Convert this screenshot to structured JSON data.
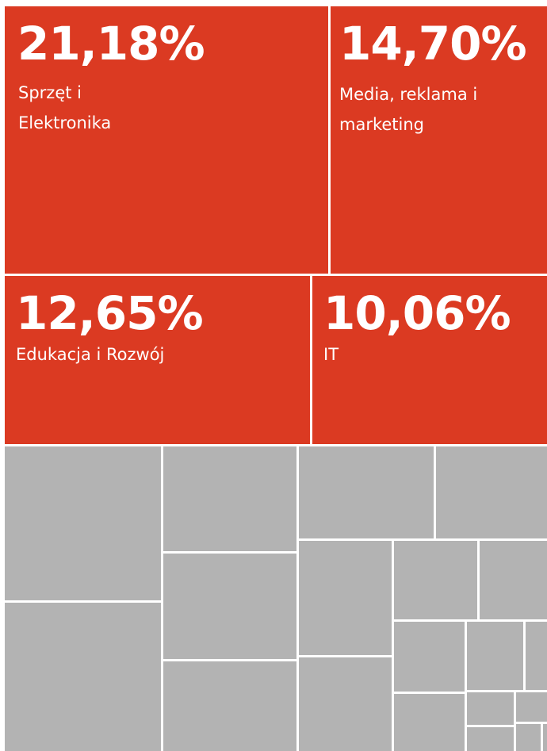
{
  "chart_data": {
    "type": "treemap",
    "categories": [
      "Sprzęt i Elektronika",
      "Media, reklama i marketing",
      "Edukacja i Rozwój",
      "IT"
    ],
    "values": [
      21.18,
      14.7,
      12.65,
      10.06
    ],
    "value_labels": [
      "21,18%",
      "14,70%",
      "12,65%",
      "10,06%"
    ],
    "color": "#db3a22",
    "other_color": "#b3b3b3"
  }
}
